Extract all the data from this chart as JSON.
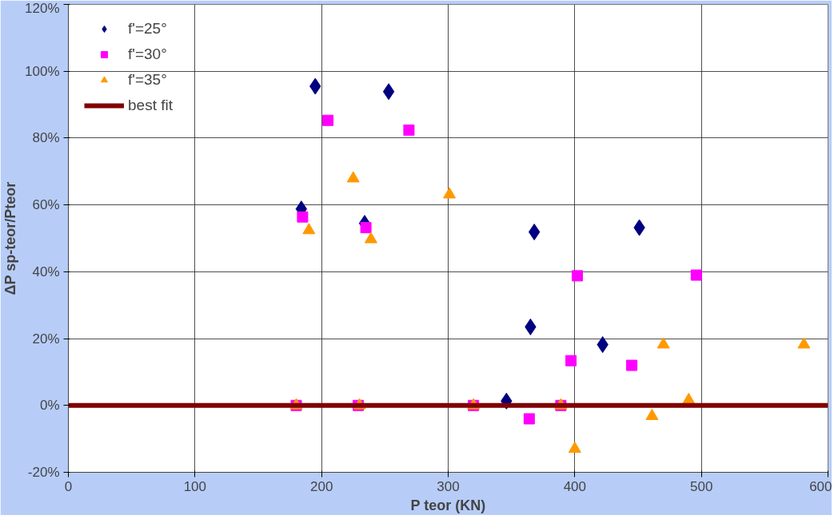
{
  "chart_data": {
    "type": "scatter",
    "xlabel": "P teor (KN)",
    "ylabel": "ΔP sp-teor/Pteor",
    "xlim": [
      0,
      600
    ],
    "xticks": [
      0,
      100,
      200,
      300,
      400,
      500,
      600
    ],
    "ylim": [
      -20,
      120
    ],
    "yticks": [
      {
        "value": -20,
        "label": "-20%"
      },
      {
        "value": 0,
        "label": "0%"
      },
      {
        "value": 20,
        "label": "20%"
      },
      {
        "value": 40,
        "label": "40%"
      },
      {
        "value": 60,
        "label": "60%"
      },
      {
        "value": 80,
        "label": "80%"
      },
      {
        "value": 100,
        "label": "100%"
      },
      {
        "value": 120,
        "label": "120%"
      }
    ],
    "grid": true,
    "legend": "top left",
    "series": [
      {
        "name": "f'=25°",
        "color": "#000080",
        "marker": "diamond",
        "x": [
          184,
          234,
          368,
          365,
          451,
          422,
          346,
          195,
          253
        ],
        "values": [
          58.8,
          54.5,
          51.9,
          23.5,
          53.2,
          18.2,
          1.3,
          95.5,
          93.9
        ]
      },
      {
        "name": "f'=30°",
        "color": "#ff00ff",
        "marker": "square",
        "x": [
          205,
          269,
          185,
          235,
          402,
          496,
          397,
          445,
          364,
          180,
          229,
          320,
          389
        ],
        "values": [
          85.3,
          82.4,
          56.4,
          53.2,
          38.8,
          39.0,
          13.4,
          12.0,
          -4,
          0,
          0,
          0,
          0
        ]
      },
      {
        "name": "f'=35°",
        "color": "#ff9900",
        "marker": "triangle",
        "x": [
          225,
          190,
          239,
          301,
          470,
          490,
          461,
          400,
          180,
          230,
          320,
          389,
          581
        ],
        "values": [
          67.9,
          52.4,
          49.7,
          63.1,
          18.2,
          1.6,
          -3.2,
          -13,
          0,
          0,
          0,
          0,
          18.2
        ]
      },
      {
        "name": "best fit",
        "type": "line",
        "color": "#800000",
        "x": [
          0,
          600
        ],
        "values": [
          0,
          0
        ]
      }
    ]
  }
}
